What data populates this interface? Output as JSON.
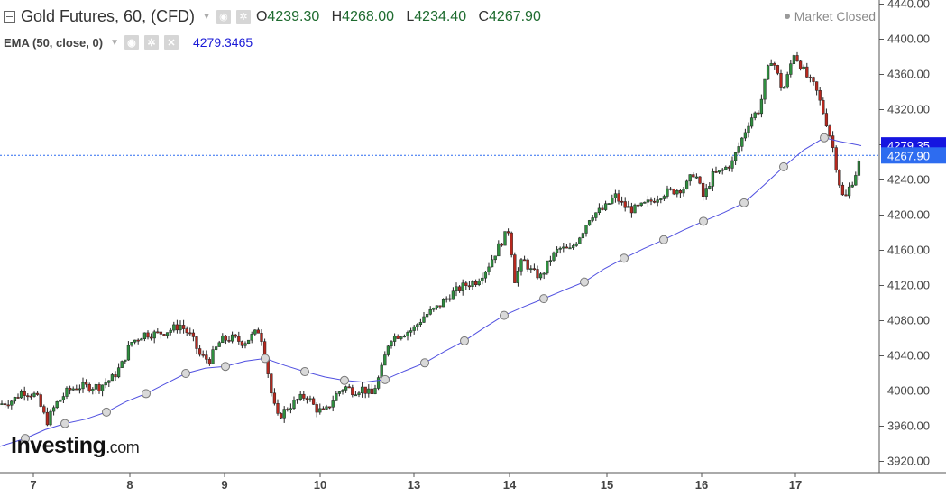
{
  "header": {
    "symbol": "Gold Futures, 60, (CFD)",
    "ohlc": [
      {
        "key": "O",
        "value": "4239.30"
      },
      {
        "key": "H",
        "value": "4268.00"
      },
      {
        "key": "L",
        "value": "4234.40"
      },
      {
        "key": "C",
        "value": "4267.90"
      }
    ],
    "status": "Market Closed"
  },
  "indicator": {
    "label": "EMA (50, close, 0)",
    "value": "4279.3465",
    "color": "#2020d0"
  },
  "icons": {
    "collapse": "collapse-square-icon",
    "eye": "eye-icon",
    "settings": "gear-icon",
    "remove": "close-icon",
    "dropdown": "chevron-down-icon"
  },
  "branding": {
    "name": "Investing",
    "suffix": ".com"
  },
  "chart_data": {
    "type": "candlestick",
    "ylim": [
      3905,
      4440
    ],
    "y_ticks": [
      3920,
      3960,
      4000,
      4040,
      4080,
      4120,
      4160,
      4200,
      4240,
      4280,
      4320,
      4360,
      4400,
      4440
    ],
    "y_tick_labels": [
      "3920.00",
      "3960.00",
      "4000.00",
      "4040.00",
      "4080.00",
      "4120.00",
      "4160.00",
      "4200.00",
      "4240.00",
      "4280.00",
      "4320.00",
      "4360.00",
      "4400.00",
      "4440.00"
    ],
    "x_labels": [
      "7",
      "8",
      "9",
      "10",
      "13",
      "14",
      "15",
      "16",
      "17"
    ],
    "colors": {
      "up": "#2f8f3f",
      "down": "#b8281e",
      "ema": "#5050e0",
      "last_price": "#2d6cf0",
      "ema_tag": "#1515e0"
    },
    "last_price": 4267.9,
    "last_price_label": "4267.90",
    "ema_last": 4279.35,
    "ema_last_label": "4279.35",
    "price_path": [
      [
        0,
        3985
      ],
      [
        15,
        3990
      ],
      [
        25,
        4000
      ],
      [
        40,
        3995
      ],
      [
        52,
        3965
      ],
      [
        62,
        3985
      ],
      [
        75,
        4000
      ],
      [
        85,
        4005
      ],
      [
        95,
        4005
      ],
      [
        110,
        4005
      ],
      [
        125,
        4015
      ],
      [
        135,
        4030
      ],
      [
        145,
        4055
      ],
      [
        160,
        4065
      ],
      [
        175,
        4065
      ],
      [
        190,
        4070
      ],
      [
        200,
        4075
      ],
      [
        212,
        4062
      ],
      [
        222,
        4040
      ],
      [
        232,
        4035
      ],
      [
        245,
        4058
      ],
      [
        258,
        4060
      ],
      [
        270,
        4055
      ],
      [
        280,
        4063
      ],
      [
        288,
        4070
      ],
      [
        295,
        4035
      ],
      [
        302,
        3990
      ],
      [
        308,
        3970
      ],
      [
        318,
        3980
      ],
      [
        330,
        3990
      ],
      [
        340,
        3995
      ],
      [
        350,
        3980
      ],
      [
        360,
        3975
      ],
      [
        372,
        3995
      ],
      [
        382,
        4005
      ],
      [
        392,
        4000
      ],
      [
        402,
        4003
      ],
      [
        412,
        3995
      ],
      [
        422,
        4020
      ],
      [
        432,
        4060
      ],
      [
        445,
        4065
      ],
      [
        458,
        4070
      ],
      [
        470,
        4085
      ],
      [
        485,
        4095
      ],
      [
        500,
        4110
      ],
      [
        515,
        4120
      ],
      [
        528,
        4125
      ],
      [
        540,
        4140
      ],
      [
        555,
        4168
      ],
      [
        565,
        4185
      ],
      [
        570,
        4125
      ],
      [
        580,
        4150
      ],
      [
        590,
        4135
      ],
      [
        600,
        4130
      ],
      [
        610,
        4150
      ],
      [
        620,
        4162
      ],
      [
        632,
        4160
      ],
      [
        645,
        4180
      ],
      [
        655,
        4200
      ],
      [
        670,
        4207
      ],
      [
        682,
        4222
      ],
      [
        692,
        4210
      ],
      [
        702,
        4206
      ],
      [
        712,
        4210
      ],
      [
        722,
        4216
      ],
      [
        735,
        4225
      ],
      [
        748,
        4228
      ],
      [
        760,
        4232
      ],
      [
        770,
        4250
      ],
      [
        780,
        4220
      ],
      [
        790,
        4245
      ],
      [
        800,
        4250
      ],
      [
        812,
        4260
      ],
      [
        822,
        4285
      ],
      [
        832,
        4310
      ],
      [
        842,
        4320
      ],
      [
        850,
        4360
      ],
      [
        856,
        4380
      ],
      [
        862,
        4360
      ],
      [
        868,
        4340
      ],
      [
        874,
        4360
      ],
      [
        880,
        4385
      ],
      [
        888,
        4370
      ],
      [
        896,
        4355
      ],
      [
        904,
        4345
      ],
      [
        912,
        4320
      ],
      [
        918,
        4300
      ],
      [
        924,
        4275
      ],
      [
        930,
        4240
      ],
      [
        936,
        4215
      ],
      [
        942,
        4232
      ],
      [
        948,
        4245
      ],
      [
        955,
        4268
      ]
    ],
    "ema_path": [
      [
        0,
        3937
      ],
      [
        28,
        3946
      ],
      [
        50,
        3956
      ],
      [
        72,
        3963
      ],
      [
        95,
        3968
      ],
      [
        118,
        3976
      ],
      [
        140,
        3988
      ],
      [
        162,
        3997
      ],
      [
        185,
        4009
      ],
      [
        206,
        4020
      ],
      [
        228,
        4026
      ],
      [
        250,
        4028
      ],
      [
        272,
        4034
      ],
      [
        294,
        4037
      ],
      [
        316,
        4029
      ],
      [
        338,
        4022
      ],
      [
        360,
        4016
      ],
      [
        382,
        4012
      ],
      [
        404,
        4010
      ],
      [
        427,
        4013
      ],
      [
        449,
        4023
      ],
      [
        471,
        4032
      ],
      [
        493,
        4045
      ],
      [
        515,
        4057
      ],
      [
        537,
        4072
      ],
      [
        559,
        4086
      ],
      [
        581,
        4096
      ],
      [
        603,
        4105
      ],
      [
        626,
        4115
      ],
      [
        648,
        4124
      ],
      [
        670,
        4139
      ],
      [
        692,
        4151
      ],
      [
        714,
        4162
      ],
      [
        736,
        4172
      ],
      [
        758,
        4183
      ],
      [
        780,
        4193
      ],
      [
        803,
        4203
      ],
      [
        825,
        4214
      ],
      [
        847,
        4234
      ],
      [
        869,
        4255
      ],
      [
        891,
        4274
      ],
      [
        914,
        4288
      ],
      [
        930,
        4284
      ],
      [
        945,
        4281
      ],
      [
        955,
        4279
      ]
    ],
    "ema_markers": [
      28,
      72,
      118,
      162,
      206,
      250,
      294,
      338,
      382,
      427,
      471,
      515,
      559,
      603,
      648,
      692,
      736,
      780,
      825,
      869,
      914
    ]
  }
}
